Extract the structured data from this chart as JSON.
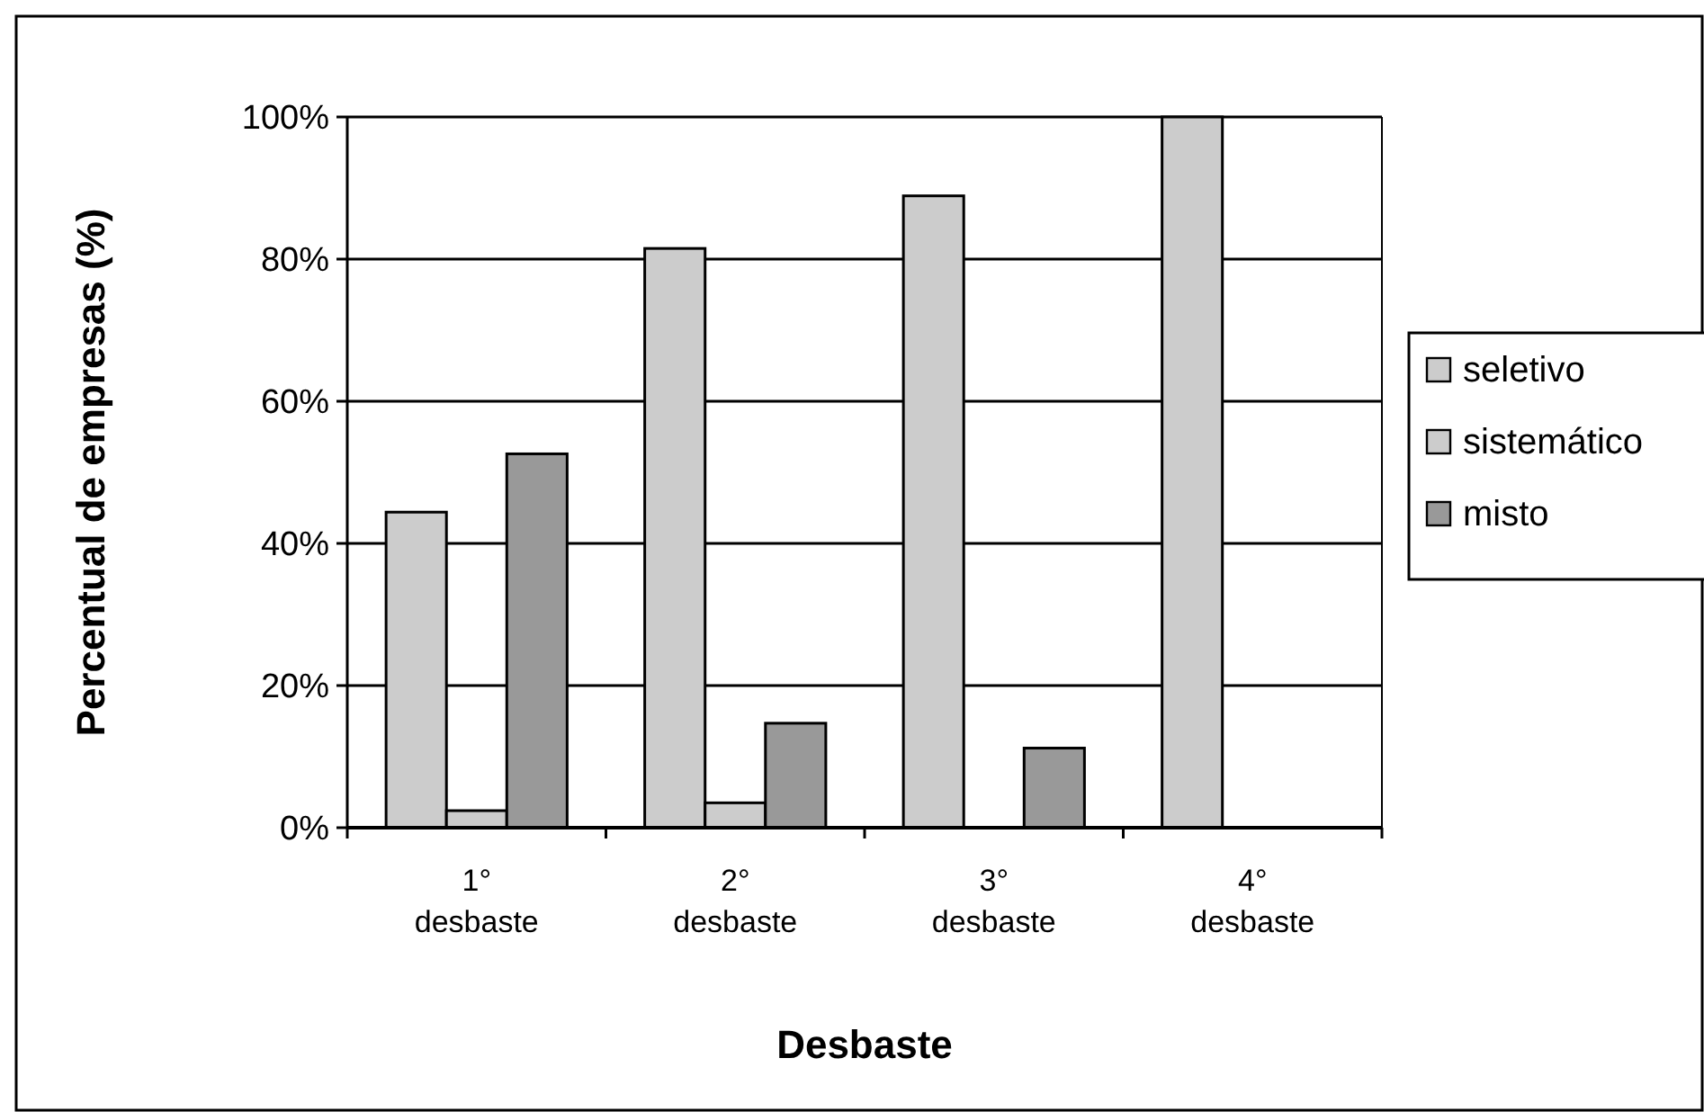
{
  "chart_data": {
    "type": "bar",
    "xlabel": "Desbaste",
    "ylabel": "Percentual de empresas (%)",
    "categories": [
      "1° desbaste",
      "2° desbaste",
      "3° desbaste",
      "4° desbaste"
    ],
    "series": [
      {
        "name": "seletivo",
        "color": "#cccccc",
        "values": [
          44.4,
          81.5,
          88.9,
          100
        ]
      },
      {
        "name": "sistemático",
        "color": "#cccccc",
        "values": [
          2.4,
          3.5,
          0,
          0
        ]
      },
      {
        "name": "misto",
        "color": "#999999",
        "values": [
          52.6,
          14.7,
          11.2,
          0
        ]
      }
    ],
    "ylim": [
      0,
      100
    ],
    "yticks": [
      {
        "value": 0,
        "label": "0%"
      },
      {
        "value": 20,
        "label": "20%"
      },
      {
        "value": 40,
        "label": "40%"
      },
      {
        "value": 60,
        "label": "60%"
      },
      {
        "value": 80,
        "label": "80%"
      },
      {
        "value": 100,
        "label": "100%"
      }
    ],
    "grid": "y",
    "legend": "right"
  }
}
